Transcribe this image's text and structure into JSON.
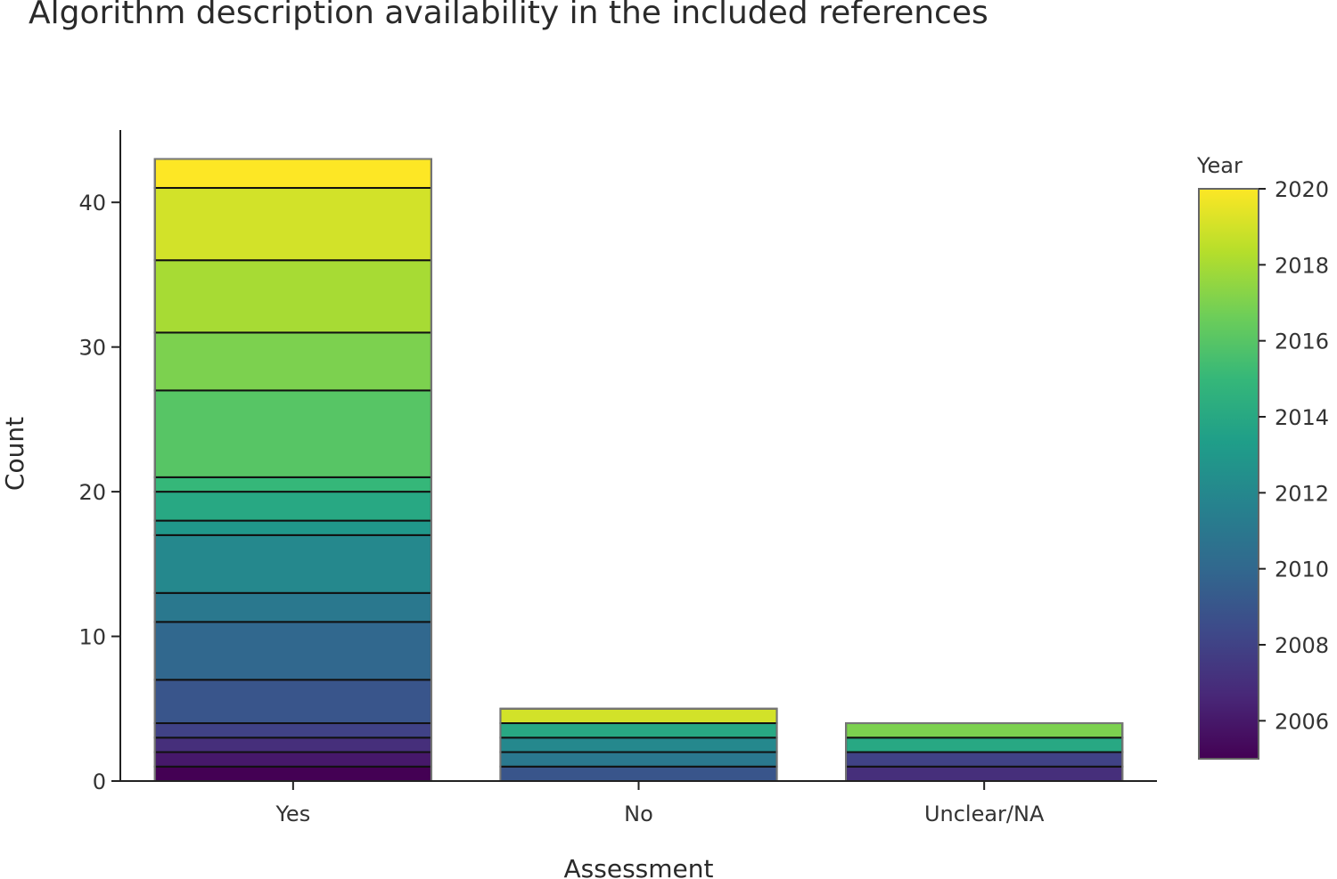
{
  "chart_data": {
    "type": "bar",
    "stacked": true,
    "title": "Algorithm description availability in the included references",
    "xlabel": "Assessment",
    "ylabel": "Count",
    "categories": [
      "Yes",
      "No",
      "Unclear/NA"
    ],
    "ylim": [
      0,
      45
    ],
    "yticks": [
      0,
      10,
      20,
      30,
      40
    ],
    "grid": false,
    "bars": [
      {
        "category": "Yes",
        "segments": [
          {
            "year": 2005,
            "count": 1
          },
          {
            "year": 2006,
            "count": 1
          },
          {
            "year": 2007,
            "count": 1
          },
          {
            "year": 2008,
            "count": 1
          },
          {
            "year": 2009,
            "count": 3
          },
          {
            "year": 2010,
            "count": 4
          },
          {
            "year": 2011,
            "count": 2
          },
          {
            "year": 2012,
            "count": 4
          },
          {
            "year": 2013,
            "count": 1
          },
          {
            "year": 2014,
            "count": 2
          },
          {
            "year": 2015,
            "count": 1
          },
          {
            "year": 2016,
            "count": 6
          },
          {
            "year": 2017,
            "count": 4
          },
          {
            "year": 2018,
            "count": 5
          },
          {
            "year": 2019,
            "count": 5
          },
          {
            "year": 2020,
            "count": 2
          }
        ]
      },
      {
        "category": "No",
        "segments": [
          {
            "year": 2009,
            "count": 1
          },
          {
            "year": 2011,
            "count": 1
          },
          {
            "year": 2012,
            "count": 1
          },
          {
            "year": 2014,
            "count": 1
          },
          {
            "year": 2019,
            "count": 1
          }
        ]
      },
      {
        "category": "Unclear/NA",
        "segments": [
          {
            "year": 2007,
            "count": 1
          },
          {
            "year": 2008,
            "count": 1
          },
          {
            "year": 2014,
            "count": 1
          },
          {
            "year": 2017,
            "count": 1
          }
        ]
      }
    ],
    "colorbar": {
      "title": "Year",
      "min": 2005,
      "max": 2020,
      "ticks": [
        2006,
        2008,
        2010,
        2012,
        2014,
        2016,
        2018,
        2020
      ],
      "colorscale": [
        "#440154",
        "#482878",
        "#3e4989",
        "#31688e",
        "#26828e",
        "#1f9e89",
        "#35b779",
        "#6ece58",
        "#b5de2b",
        "#fde725"
      ],
      "placement": "right"
    }
  }
}
